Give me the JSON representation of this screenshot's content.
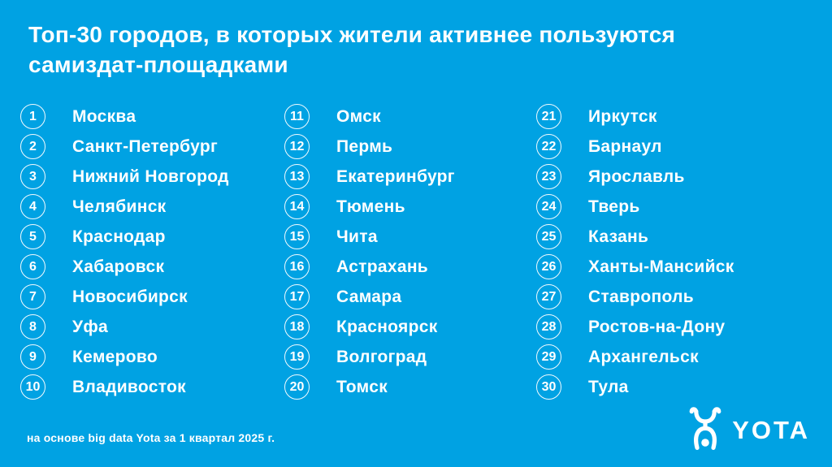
{
  "colors": {
    "background": "#00A2E3",
    "text": "#FFFFFF"
  },
  "title": {
    "line1": "Топ-30 городов, в которых жители активнее пользуются",
    "line2": "самиздат-площадками"
  },
  "footer": {
    "source": "на основе big data Yota за 1 квартал 2025 г."
  },
  "logo": {
    "text": "YOTA"
  },
  "chart_data": {
    "type": "table",
    "title": "Топ-30 городов, в которых жители активнее пользуются самиздат-площадками",
    "columns": [
      "rank",
      "city"
    ],
    "layout": "three columns of ten, ranks 1-10, 11-20, 21-30",
    "rows": [
      [
        1,
        "Москва"
      ],
      [
        2,
        "Санкт-Петербург"
      ],
      [
        3,
        "Нижний Новгород"
      ],
      [
        4,
        "Челябинск"
      ],
      [
        5,
        "Краснодар"
      ],
      [
        6,
        "Хабаровск"
      ],
      [
        7,
        "Новосибирск"
      ],
      [
        8,
        "Уфа"
      ],
      [
        9,
        "Кемерово"
      ],
      [
        10,
        "Владивосток"
      ],
      [
        11,
        "Омск"
      ],
      [
        12,
        "Пермь"
      ],
      [
        13,
        "Екатеринбург"
      ],
      [
        14,
        "Тюмень"
      ],
      [
        15,
        "Чита"
      ],
      [
        16,
        "Астрахань"
      ],
      [
        17,
        "Самара"
      ],
      [
        18,
        "Красноярск"
      ],
      [
        19,
        "Волгоград"
      ],
      [
        20,
        "Томск"
      ],
      [
        21,
        "Иркутск"
      ],
      [
        22,
        "Барнаул"
      ],
      [
        23,
        "Ярославль"
      ],
      [
        24,
        "Тверь"
      ],
      [
        25,
        "Казань"
      ],
      [
        26,
        "Ханты-Мансийск"
      ],
      [
        27,
        "Ставрополь"
      ],
      [
        28,
        "Ростов-на-Дону"
      ],
      [
        29,
        "Архангельск"
      ],
      [
        30,
        "Тула"
      ]
    ]
  }
}
